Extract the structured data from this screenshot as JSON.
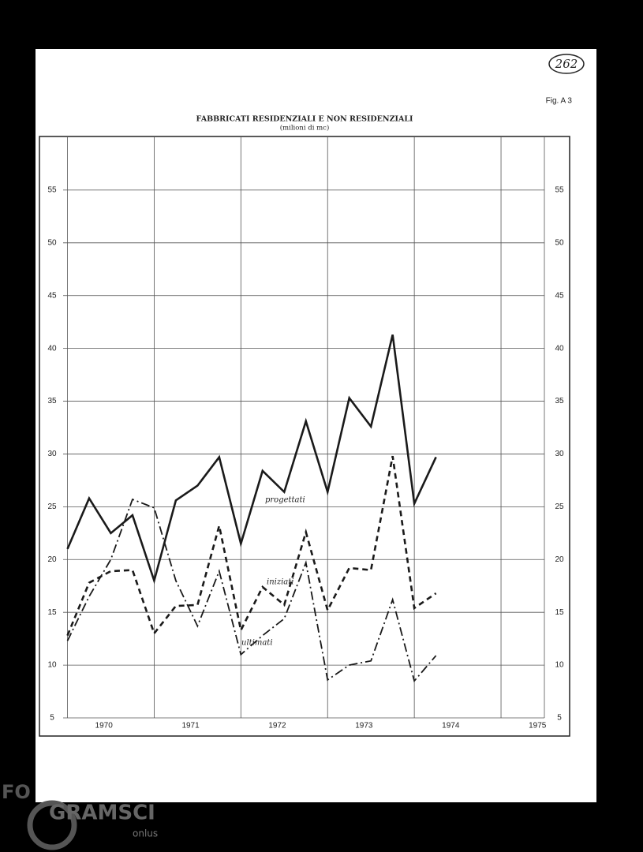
{
  "chart_data": {
    "type": "line",
    "title": "FABBRICATI RESIDENZIALI E NON RESIDENZIALI",
    "subtitle": "(milioni di mc)",
    "figure_label": "Fig. A 3",
    "page_number": "262",
    "watermark": [
      "FO",
      "GRAMSCI",
      "onlus"
    ],
    "x": [
      1970,
      1970.25,
      1970.5,
      1970.75,
      1971,
      1971.25,
      1971.5,
      1971.75,
      1972,
      1972.25,
      1972.5,
      1972.75,
      1973,
      1973.25,
      1973.5,
      1973.75,
      1974,
      1974.25
    ],
    "xlim": [
      1969.95,
      1975.5
    ],
    "xticks": [
      1970,
      1971,
      1972,
      1973,
      1974,
      1975
    ],
    "ylim": [
      5,
      60
    ],
    "yticks": [
      5,
      10,
      15,
      20,
      25,
      30,
      35,
      40,
      45,
      50,
      55
    ],
    "grid": true,
    "series": [
      {
        "name": "progettati",
        "color": "#1a1a1a",
        "style": "solid",
        "values": [
          21,
          25.8,
          22.5,
          24.2,
          18,
          25.6,
          27,
          29.7,
          21.5,
          28.4,
          26.4,
          33.1,
          26.4,
          35.3,
          32.6,
          41.3,
          25.3,
          29.7
        ]
      },
      {
        "name": "iniziati",
        "color": "#1a1a1a",
        "style": "dashed",
        "values": [
          12.8,
          17.8,
          18.9,
          19,
          13,
          15.6,
          15.7,
          23.2,
          13.3,
          17.4,
          15.7,
          22.6,
          15.2,
          19.2,
          19,
          29.8,
          15.4,
          16.8
        ]
      },
      {
        "name": "ultimati",
        "color": "#1a1a1a",
        "style": "dashdot",
        "values": [
          12.3,
          16.5,
          20,
          25.7,
          24.9,
          18,
          13.7,
          18.9,
          11,
          12.8,
          14.4,
          19.7,
          8.6,
          10,
          10.4,
          16.2,
          8.5,
          10.9
        ]
      }
    ]
  }
}
